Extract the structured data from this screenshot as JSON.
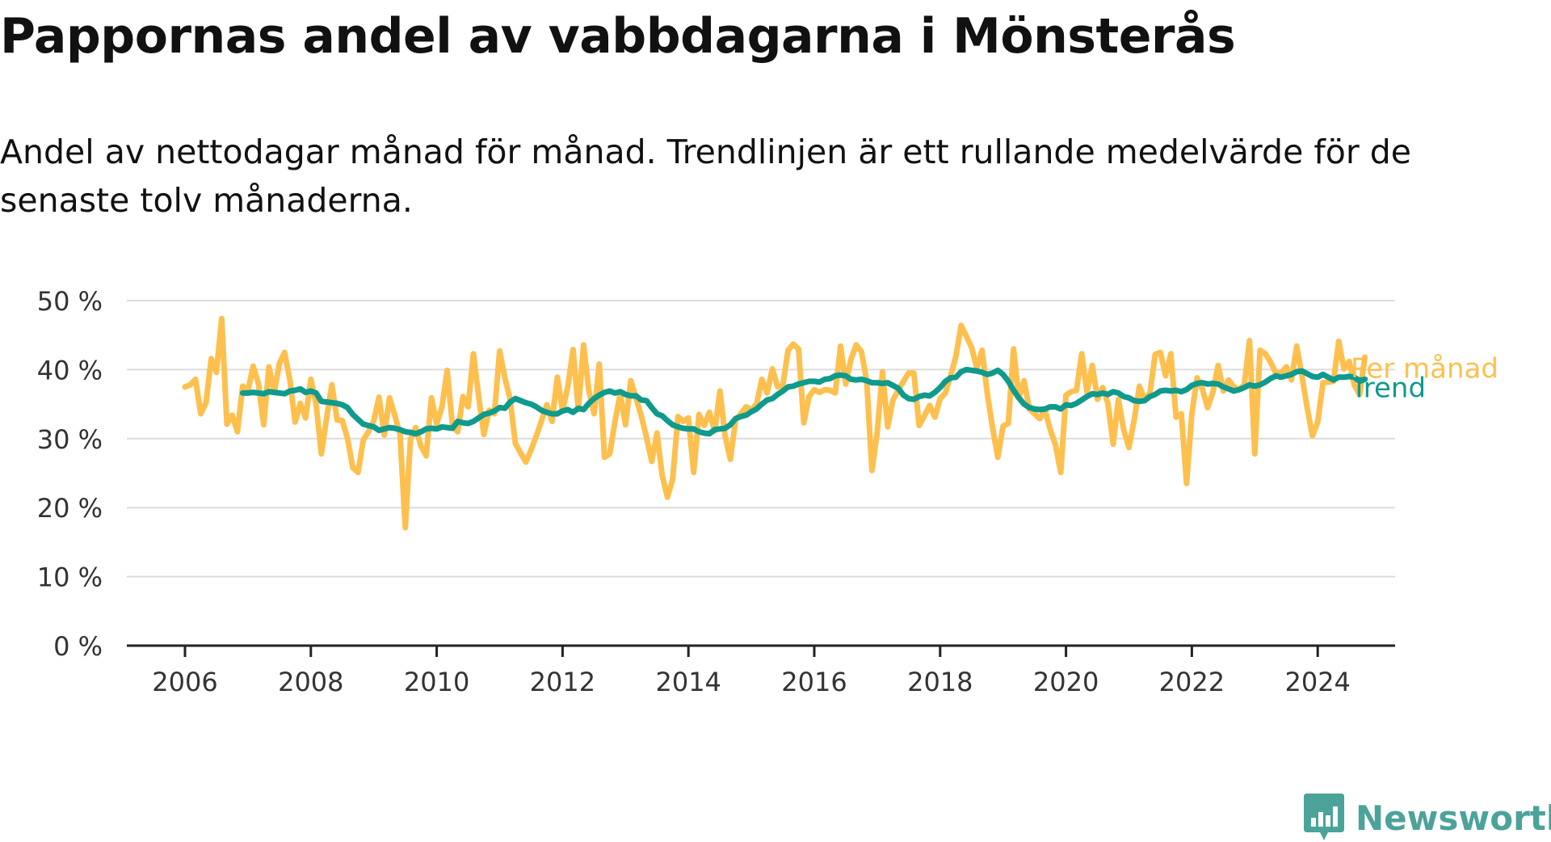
{
  "chart_data": {
    "type": "line",
    "title": "Pappornas andel av vabbdagarna i Mönsterås",
    "subtitle": "Andel av nettodagar månad för månad. Trendlinjen är ett rullande medelvärde för de senaste tolv månaderna.",
    "xlabel": "",
    "ylabel": "",
    "xlim": [
      2005.5,
      2025.8
    ],
    "ylim": [
      0,
      50
    ],
    "x_ticks": [
      "2006",
      "2008",
      "2010",
      "2012",
      "2014",
      "2016",
      "2018",
      "2020",
      "2022",
      "2024"
    ],
    "y_ticks": [
      "0 %",
      "10 %",
      "20 %",
      "30 %",
      "40 %",
      "50 %"
    ],
    "grid": true,
    "legend": "inline labels at line ends",
    "series": [
      {
        "name": "Per månad",
        "color": "#fdc04f",
        "start_year": 2006,
        "step_months": 1,
        "values": [
          37.5,
          37.8,
          38.6,
          33.6,
          35.2,
          41.6,
          39.6,
          47.4,
          32.1,
          33.4,
          31.0,
          37.6,
          36.9,
          40.5,
          38.0,
          32.0,
          40.4,
          36.7,
          40.9,
          42.5,
          38.5,
          32.4,
          35.1,
          33.0,
          38.6,
          35.0,
          27.8,
          33.0,
          37.8,
          32.7,
          32.6,
          30.0,
          25.8,
          25.1,
          29.8,
          31.0,
          32.6,
          36.0,
          30.5,
          35.9,
          33.4,
          30.6,
          17.1,
          29.9,
          31.6,
          28.9,
          27.5,
          35.9,
          32.1,
          34.6,
          39.9,
          31.8,
          31.0,
          36.1,
          34.6,
          42.3,
          36.1,
          30.6,
          34.1,
          33.6,
          42.7,
          38.8,
          35.7,
          29.3,
          27.9,
          26.6,
          28.4,
          30.4,
          32.6,
          34.9,
          32.5,
          38.9,
          34.0,
          37.5,
          42.9,
          34.2,
          43.6,
          37.0,
          33.6,
          40.8,
          27.3,
          27.8,
          32.5,
          36.5,
          32.0,
          38.4,
          35.9,
          33.3,
          30.2,
          26.7,
          30.8,
          24.7,
          21.5,
          24.1,
          33.2,
          32.5,
          33.0,
          25.1,
          33.5,
          31.9,
          33.8,
          31.1,
          36.9,
          30.4,
          27.0,
          32.7,
          33.6,
          34.6,
          34.2,
          35.0,
          38.6,
          36.6,
          40.1,
          37.5,
          37.7,
          42.8,
          43.7,
          43.0,
          32.3,
          36.1,
          37.1,
          36.7,
          37.1,
          37.0,
          36.6,
          43.4,
          37.9,
          41.5,
          43.6,
          42.6,
          38.4,
          25.4,
          30.9,
          39.7,
          31.7,
          35.6,
          37.0,
          38.3,
          39.5,
          39.5,
          31.9,
          33.3,
          34.8,
          33.1,
          35.8,
          36.6,
          39.1,
          41.9,
          46.4,
          44.8,
          43.2,
          40.2,
          42.8,
          36.5,
          31.6,
          27.3,
          31.8,
          32.2,
          43.0,
          35.9,
          38.4,
          34.3,
          33.6,
          32.9,
          34.1,
          31.3,
          29.1,
          25.1,
          36.3,
          36.8,
          37.0,
          42.3,
          36.7,
          40.6,
          35.7,
          37.4,
          35.1,
          29.2,
          35.7,
          31.3,
          28.7,
          32.7,
          37.6,
          35.6,
          36.6,
          42.2,
          42.5,
          39.1,
          42.3,
          33.1,
          33.6,
          23.5,
          33.6,
          38.8,
          37.2,
          34.5,
          36.7,
          40.6,
          36.9,
          38.5,
          37.5,
          37.1,
          37.8,
          44.2,
          27.8,
          42.8,
          42.3,
          41.1,
          39.5,
          39.5,
          40.4,
          38.5,
          43.4,
          39.1,
          34.4,
          30.4,
          32.4,
          38.1,
          38.2,
          38.3,
          44.1,
          40.1,
          41.2,
          37.7,
          36.4,
          41.8
        ]
      },
      {
        "name": "Trend",
        "color": "#0f9a8c",
        "start_year": 2006.9167,
        "step_months": 1,
        "values": [
          36.6,
          36.6,
          36.7,
          36.6,
          36.5,
          36.8,
          36.7,
          36.6,
          36.5,
          36.9,
          37.0,
          37.2,
          36.7,
          36.9,
          36.6,
          35.4,
          35.3,
          35.2,
          35.1,
          34.9,
          34.5,
          33.5,
          32.8,
          32.1,
          31.9,
          31.7,
          31.2,
          31.4,
          31.6,
          31.5,
          31.3,
          31.0,
          30.9,
          30.7,
          31.0,
          31.4,
          31.5,
          31.4,
          31.7,
          31.6,
          31.5,
          32.5,
          32.3,
          32.2,
          32.5,
          33.0,
          33.5,
          33.7,
          34.0,
          34.5,
          34.4,
          35.3,
          35.8,
          35.5,
          35.2,
          35.0,
          34.6,
          34.1,
          33.8,
          33.6,
          33.6,
          34.0,
          34.2,
          33.8,
          34.4,
          34.2,
          35.1,
          35.8,
          36.3,
          36.7,
          36.9,
          36.6,
          36.8,
          36.4,
          36.2,
          36.2,
          35.6,
          35.5,
          34.5,
          33.6,
          33.3,
          32.6,
          32.0,
          31.7,
          31.5,
          31.4,
          31.4,
          31.0,
          30.8,
          30.7,
          31.3,
          31.4,
          31.5,
          32.0,
          32.9,
          33.2,
          33.4,
          33.9,
          34.3,
          35.0,
          35.6,
          35.8,
          36.4,
          36.9,
          37.5,
          37.6,
          37.9,
          38.1,
          38.3,
          38.3,
          38.2,
          38.6,
          38.7,
          39.1,
          39.2,
          39.1,
          38.6,
          38.5,
          38.6,
          38.4,
          38.1,
          38.1,
          38.0,
          38.1,
          37.7,
          37.3,
          36.3,
          35.8,
          35.7,
          36.1,
          36.3,
          36.2,
          36.7,
          37.4,
          38.3,
          38.8,
          38.9,
          39.7,
          40.0,
          39.9,
          39.8,
          39.6,
          39.3,
          39.5,
          39.9,
          39.3,
          38.3,
          37.0,
          35.9,
          35.0,
          34.5,
          34.3,
          34.2,
          34.3,
          34.6,
          34.6,
          34.3,
          34.9,
          34.8,
          35.1,
          35.6,
          36.1,
          36.5,
          36.4,
          36.6,
          36.4,
          36.8,
          36.6,
          36.1,
          35.9,
          35.5,
          35.4,
          35.5,
          36.1,
          36.4,
          36.9,
          37.0,
          36.9,
          37.0,
          36.8,
          37.1,
          37.7,
          38.0,
          38.1,
          37.9,
          38.0,
          37.9,
          37.5,
          37.2,
          36.9,
          37.1,
          37.4,
          37.8,
          37.6,
          37.8,
          38.2,
          38.7,
          39.1,
          38.9,
          39.1,
          39.3,
          39.7,
          39.8,
          39.4,
          39.0,
          38.9,
          39.3,
          38.9,
          38.5,
          38.9,
          38.9,
          39.0,
          38.9,
          38.3,
          38.6
        ]
      }
    ]
  },
  "logo": {
    "text": "Newsworthy",
    "color": "#4ba39a",
    "icon": "bar-chart-badge-icon"
  }
}
